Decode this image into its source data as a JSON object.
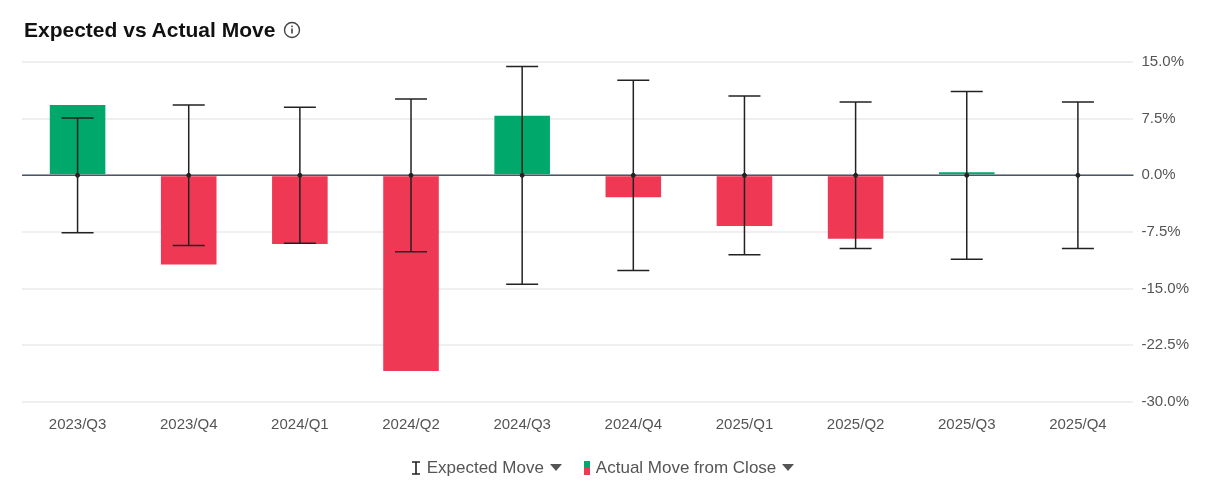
{
  "chart_data": {
    "type": "bar",
    "title": "Expected vs Actual Move",
    "categories": [
      "2023/Q3",
      "2023/Q4",
      "2024/Q1",
      "2024/Q2",
      "2024/Q3",
      "2024/Q4",
      "2025/Q1",
      "2025/Q2",
      "2025/Q3",
      "2025/Q4"
    ],
    "series": [
      {
        "name": "Expected Move",
        "type": "scatter",
        "color": "#222222",
        "values": [
          0,
          0,
          0,
          0,
          0,
          0,
          0,
          0,
          0,
          0
        ],
        "errors": [
          7.6,
          9.3,
          9.0,
          10.1,
          14.4,
          12.6,
          10.5,
          9.7,
          11.1,
          9.7
        ]
      },
      {
        "name": "Actual Move from Close",
        "colors": [
          "#00a86b",
          "#ef3854",
          "#ef3854",
          "#ef3854",
          "#00a86b",
          "#ef3854",
          "#ef3854",
          "#ef3854",
          "#00a86b",
          null
        ],
        "values": [
          9.3,
          -11.8,
          -9.1,
          -25.9,
          7.9,
          -2.9,
          -6.7,
          -8.4,
          0.4,
          null
        ]
      }
    ],
    "ylim": [
      -30,
      15
    ],
    "yticks": [
      {
        "value": 15,
        "label": "15.0%"
      },
      {
        "value": 7.5,
        "label": "7.5%"
      },
      {
        "value": 0,
        "label": "0.0%"
      },
      {
        "value": -7.5,
        "label": "-7.5%"
      },
      {
        "value": -15,
        "label": "-15.0%"
      },
      {
        "value": -22.5,
        "label": "-22.5%"
      },
      {
        "value": -30,
        "label": "-30.0%"
      }
    ],
    "ref_lines": [
      {
        "axis": "y",
        "value": 0,
        "color": "#4a5568"
      }
    ],
    "grid": "y",
    "legend": "bottom"
  }
}
